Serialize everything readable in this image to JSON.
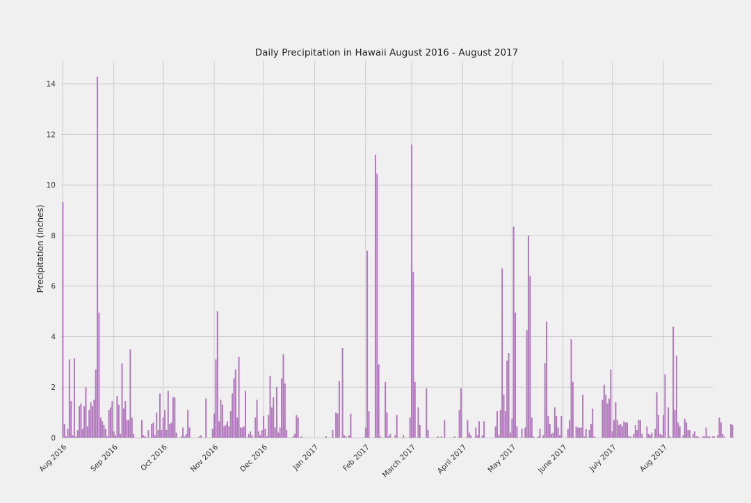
{
  "chart_data": {
    "type": "bar",
    "title": "Daily Precipitation in Hawaii August 2016 - August 2017",
    "xlabel": "",
    "ylabel": "Precipitation (inches)",
    "ylim": [
      0,
      14.9
    ],
    "xlim": [
      "2016-07-31",
      "2017-08-31"
    ],
    "yticks": [
      0,
      2,
      4,
      6,
      8,
      10,
      12,
      14
    ],
    "xticks": [
      {
        "date": "2016-08-01",
        "label": "Aug 2016"
      },
      {
        "date": "2016-09-01",
        "label": "Sep 2016"
      },
      {
        "date": "2016-10-01",
        "label": "Oct 2016"
      },
      {
        "date": "2016-11-01",
        "label": "Nov 2016"
      },
      {
        "date": "2016-12-01",
        "label": "Dec 2016"
      },
      {
        "date": "2017-01-01",
        "label": "Jan 2017"
      },
      {
        "date": "2017-02-01",
        "label": "Feb 2017"
      },
      {
        "date": "2017-03-01",
        "label": "March 2017"
      },
      {
        "date": "2017-04-01",
        "label": "April 2017"
      },
      {
        "date": "2017-05-01",
        "label": "May 2017"
      },
      {
        "date": "2017-06-01",
        "label": "June 2017"
      },
      {
        "date": "2017-07-01",
        "label": "July 2017"
      },
      {
        "date": "2017-08-01",
        "label": "Aug 2017"
      }
    ],
    "grid": true,
    "legend": "none",
    "bar_color": "#b278bd",
    "background_color": "#f0f0f0",
    "grid_color": "#cbcbcb",
    "start_date": "2016-08-01",
    "values": [
      9.32,
      0.55,
      0.05,
      0.35,
      3.1,
      1.45,
      0.1,
      3.15,
      0.05,
      0.3,
      1.25,
      1.35,
      0.35,
      1.25,
      2.0,
      0.45,
      1.1,
      1.4,
      1.25,
      1.5,
      2.7,
      14.28,
      4.95,
      0.8,
      0.65,
      0.5,
      0.35,
      0.05,
      1.1,
      1.2,
      1.45,
      0.25,
      0.1,
      1.65,
      1.3,
      0.15,
      2.95,
      1.15,
      1.45,
      0.7,
      0.7,
      3.5,
      0.8,
      0.15,
      0,
      0,
      0,
      0,
      0.7,
      0.1,
      0.05,
      0,
      0.3,
      0,
      0.55,
      0.6,
      0.1,
      1.0,
      0.3,
      1.75,
      0.3,
      0.8,
      1.1,
      0.3,
      1.85,
      0.55,
      0.6,
      1.6,
      1.6,
      0.2,
      0,
      0,
      0.05,
      0.4,
      0.05,
      0.15,
      1.1,
      0.4,
      0,
      0,
      0,
      0,
      0,
      0.05,
      0.1,
      0,
      0,
      1.55,
      0,
      0,
      0,
      0.35,
      0.95,
      3.1,
      5.0,
      0.65,
      1.5,
      1.3,
      0.45,
      0.5,
      0.65,
      0.45,
      1.05,
      1.75,
      2.35,
      2.7,
      0.8,
      3.2,
      0.4,
      0.4,
      0.45,
      1.85,
      0,
      0.15,
      0.25,
      0.1,
      0,
      0.8,
      1.5,
      0.25,
      0.1,
      0.3,
      0.85,
      0.35,
      0.05,
      0.9,
      2.45,
      1.2,
      1.6,
      0.4,
      2.0,
      0.2,
      0.4,
      2.35,
      3.3,
      2.15,
      0.3,
      0,
      0,
      0,
      0.05,
      0.15,
      0.9,
      0.8,
      0,
      0.05,
      0,
      0,
      0,
      0,
      0,
      0,
      0,
      0,
      0,
      0,
      0,
      0,
      0,
      0,
      0.05,
      0,
      0,
      0,
      0.3,
      0,
      1.0,
      0.95,
      2.25,
      0,
      3.55,
      0.1,
      0.05,
      0,
      0.1,
      0.95,
      0,
      0,
      0,
      0,
      0,
      0,
      0,
      0,
      0.4,
      7.4,
      1.05,
      0,
      0,
      0,
      11.2,
      10.45,
      2.9,
      0.05,
      0,
      0,
      2.2,
      1.0,
      0.05,
      0.15,
      0,
      0,
      0.1,
      0.9,
      0,
      0,
      0,
      0.1,
      0,
      0,
      0,
      0.8,
      11.6,
      6.55,
      2.2,
      0,
      1.2,
      0.5,
      0,
      0,
      0,
      1.95,
      0.3,
      0,
      0,
      0,
      0,
      0,
      0.05,
      0,
      0.05,
      0,
      0.7,
      0,
      0,
      0,
      0,
      0,
      0.05,
      0,
      0,
      1.1,
      1.95,
      0,
      0,
      0,
      0.7,
      0.2,
      0.1,
      0,
      0,
      0.4,
      0.1,
      0.65,
      0,
      0.1,
      0.65,
      0,
      0,
      0,
      0,
      0,
      0,
      0.45,
      1.05,
      0.1,
      1.1,
      6.7,
      1.7,
      1.05,
      3.05,
      3.35,
      0.2,
      0.75,
      8.35,
      4.95,
      0.45,
      0,
      0,
      0.35,
      0,
      0.4,
      4.25,
      8.0,
      6.4,
      0.8,
      0.05,
      0,
      0,
      0.05,
      0.35,
      0,
      0.1,
      2.95,
      4.6,
      0.85,
      0.55,
      0.15,
      0.2,
      1.2,
      0.85,
      0.4,
      0.1,
      0.85,
      0,
      0,
      0,
      0.35,
      0.7,
      3.9,
      2.2,
      0,
      0.45,
      0.4,
      0.4,
      0.4,
      1.7,
      0.05,
      0.35,
      0,
      0.3,
      0.55,
      1.15,
      0.05,
      0,
      0,
      0,
      0,
      1.5,
      2.1,
      1.7,
      1.35,
      1.55,
      2.7,
      0.25,
      0.7,
      1.4,
      0.7,
      0.5,
      0.55,
      0.45,
      0.65,
      0.6,
      0.6,
      0.05,
      0.05,
      0,
      0.15,
      0.5,
      0.3,
      0.7,
      0.7,
      0.15,
      0,
      0,
      0.45,
      0.15,
      0.1,
      0.2,
      0,
      0.35,
      1.8,
      0.9,
      0.15,
      0.1,
      0.9,
      2.5,
      0,
      1.2,
      0.05,
      0,
      4.4,
      1.1,
      3.25,
      0.6,
      0.45,
      0,
      0.1,
      0.75,
      0.6,
      0.3,
      0.3,
      0,
      0.15,
      0.25,
      0.05,
      0.05,
      0,
      0,
      0.05,
      0.05,
      0.4,
      0.05,
      0.05,
      0,
      0.05,
      0.05,
      0,
      0.1,
      0.8,
      0.6,
      0.15,
      0.05,
      0,
      0,
      0,
      0.55,
      0.5
    ]
  }
}
